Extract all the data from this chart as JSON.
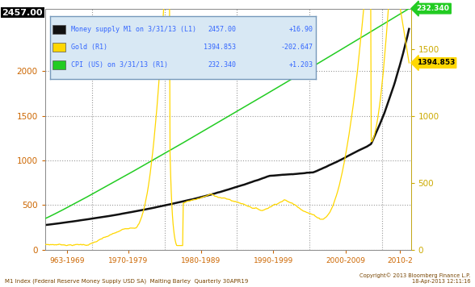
{
  "background_color": "#ffffff",
  "plot_bg_color": "#ffffff",
  "legend_bg_color": "#cce0f0",
  "legend_border_color": "#8899bb",
  "grid_color": "#aaaaaa",
  "grid_style": ":",
  "xlabel_text": "M1 Index (Federal Reserve Money Supply USD SA)  Malting Barley  Quarterly 30APR19",
  "copyright_text": "Copyright© 2013 Bloomberg Finance L.P.\n18-Apr-2013 12:11:16",
  "left_tick_color": "#cc6600",
  "right_tick_color": "#ccaa00",
  "x_tick_color": "#cc6600",
  "m1_color": "#111111",
  "gold_color": "#FFD700",
  "cpi_color": "#22cc22",
  "legend_text_color": "#3366ff",
  "m1_label": "Money supply M1 on 3/31/13 (L1)",
  "gold_label": "Gold (R1)",
  "cpi_label": "CPI (US) on 3/31/13 (R1)",
  "m1_value": "2457.00",
  "gold_value": "1394.853",
  "cpi_value": "232.340",
  "m1_change": "+16.90",
  "gold_change": "-202.647",
  "cpi_change": "+1.203",
  "ylim_left": [
    0,
    2700
  ],
  "ylim_right": [
    0,
    1800
  ],
  "yticks_left": [
    0,
    500,
    1000,
    1500,
    2000
  ],
  "yticks_right": [
    0,
    500,
    1000,
    1500
  ],
  "xmin": 1963.0,
  "xmax": 2013.5,
  "vlines": [
    1969.5,
    1979.5,
    1989.5,
    1999.5,
    2009.5
  ],
  "xtick_positions": [
    1966.0,
    1974.5,
    1984.5,
    1994.5,
    2004.5,
    2012.0
  ],
  "xtick_labels": [
    "963-1969",
    "1970-1979",
    "1980-1989",
    "1990-1999",
    "2000-2009",
    "2010-2"
  ],
  "gold_arrow_value": "1394.853",
  "cpi_arrow_value": "232.340",
  "m1_topleft_value": "2457.00",
  "right_axis_color": "#ccaa00"
}
